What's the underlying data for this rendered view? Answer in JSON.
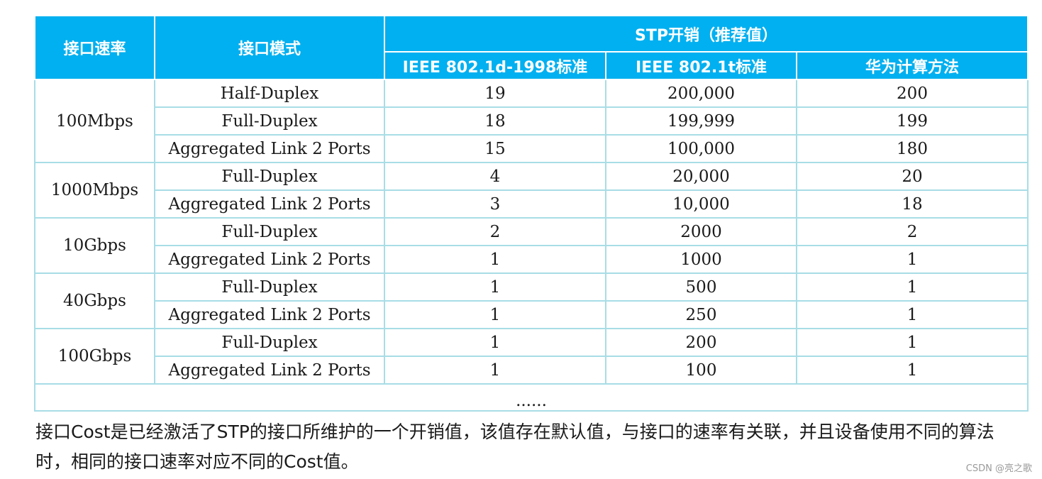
{
  "table": {
    "header": {
      "col_speed": "接口速率",
      "col_mode": "接口模式",
      "col_cost_group": "STP开销（推荐值）",
      "col_ieee_1998": "IEEE 802.1d-1998标准",
      "col_ieee_t": "IEEE 802.1t标准",
      "col_huawei": "华为计算方法"
    },
    "groups": [
      {
        "speed": "100Mbps",
        "rows": [
          {
            "mode": "Half-Duplex",
            "ieee_1998": "19",
            "ieee_t": "200,000",
            "huawei": "200"
          },
          {
            "mode": "Full-Duplex",
            "ieee_1998": "18",
            "ieee_t": "199,999",
            "huawei": "199"
          },
          {
            "mode": "Aggregated Link 2 Ports",
            "ieee_1998": "15",
            "ieee_t": "100,000",
            "huawei": "180"
          }
        ]
      },
      {
        "speed": "1000Mbps",
        "rows": [
          {
            "mode": "Full-Duplex",
            "ieee_1998": "4",
            "ieee_t": "20,000",
            "huawei": "20"
          },
          {
            "mode": "Aggregated Link 2 Ports",
            "ieee_1998": "3",
            "ieee_t": "10,000",
            "huawei": "18"
          }
        ]
      },
      {
        "speed": "10Gbps",
        "rows": [
          {
            "mode": "Full-Duplex",
            "ieee_1998": "2",
            "ieee_t": "2000",
            "huawei": "2"
          },
          {
            "mode": "Aggregated Link 2 Ports",
            "ieee_1998": "1",
            "ieee_t": "1000",
            "huawei": "1"
          }
        ]
      },
      {
        "speed": "40Gbps",
        "rows": [
          {
            "mode": "Full-Duplex",
            "ieee_1998": "1",
            "ieee_t": "500",
            "huawei": "1"
          },
          {
            "mode": "Aggregated Link 2 Ports",
            "ieee_1998": "1",
            "ieee_t": "250",
            "huawei": "1"
          }
        ]
      },
      {
        "speed": "100Gbps",
        "rows": [
          {
            "mode": "Full-Duplex",
            "ieee_1998": "1",
            "ieee_t": "200",
            "huawei": "1"
          },
          {
            "mode": "Aggregated Link 2 Ports",
            "ieee_1998": "1",
            "ieee_t": "100",
            "huawei": "1"
          }
        ]
      }
    ],
    "ellipsis": "......"
  },
  "description": "接口Cost是已经激活了STP的接口所维护的一个开销值，该值存在默认值，与接口的速率有关联，并且设备使用不同的算法时，相同的接口速率对应不同的Cost值。",
  "watermark": "CSDN @亮之歌",
  "colors": {
    "header_bg": "#01b0f0",
    "header_text": "#ffffff",
    "grid_line": "#a8dde6"
  }
}
